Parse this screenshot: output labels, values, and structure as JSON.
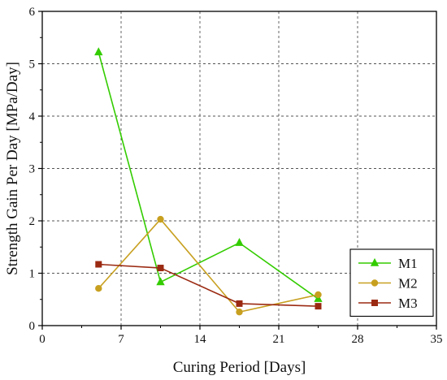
{
  "chart_data": {
    "type": "line",
    "title": "",
    "xlabel": "Curing Period [Days]",
    "ylabel": "Strength Gain Per Day [MPa/Day]",
    "xlim": [
      0,
      35
    ],
    "ylim": [
      0,
      6
    ],
    "xticks": [
      0,
      7,
      14,
      21,
      28,
      35
    ],
    "yticks": [
      0,
      1,
      2,
      3,
      4,
      5,
      6
    ],
    "grid": true,
    "legend_position": "bottom-right",
    "series": [
      {
        "name": "M1",
        "color": "#33cc00",
        "marker": "triangle",
        "x": [
          5,
          10.5,
          17.5,
          24.5
        ],
        "y": [
          5.22,
          0.83,
          1.58,
          0.51
        ]
      },
      {
        "name": "M2",
        "color": "#c8a020",
        "marker": "circle",
        "x": [
          5,
          10.5,
          17.5,
          24.5
        ],
        "y": [
          0.71,
          2.03,
          0.26,
          0.59
        ]
      },
      {
        "name": "M3",
        "color": "#9b2a12",
        "marker": "square",
        "x": [
          5,
          10.5,
          17.5,
          24.5
        ],
        "y": [
          1.17,
          1.1,
          0.42,
          0.37
        ]
      }
    ]
  }
}
